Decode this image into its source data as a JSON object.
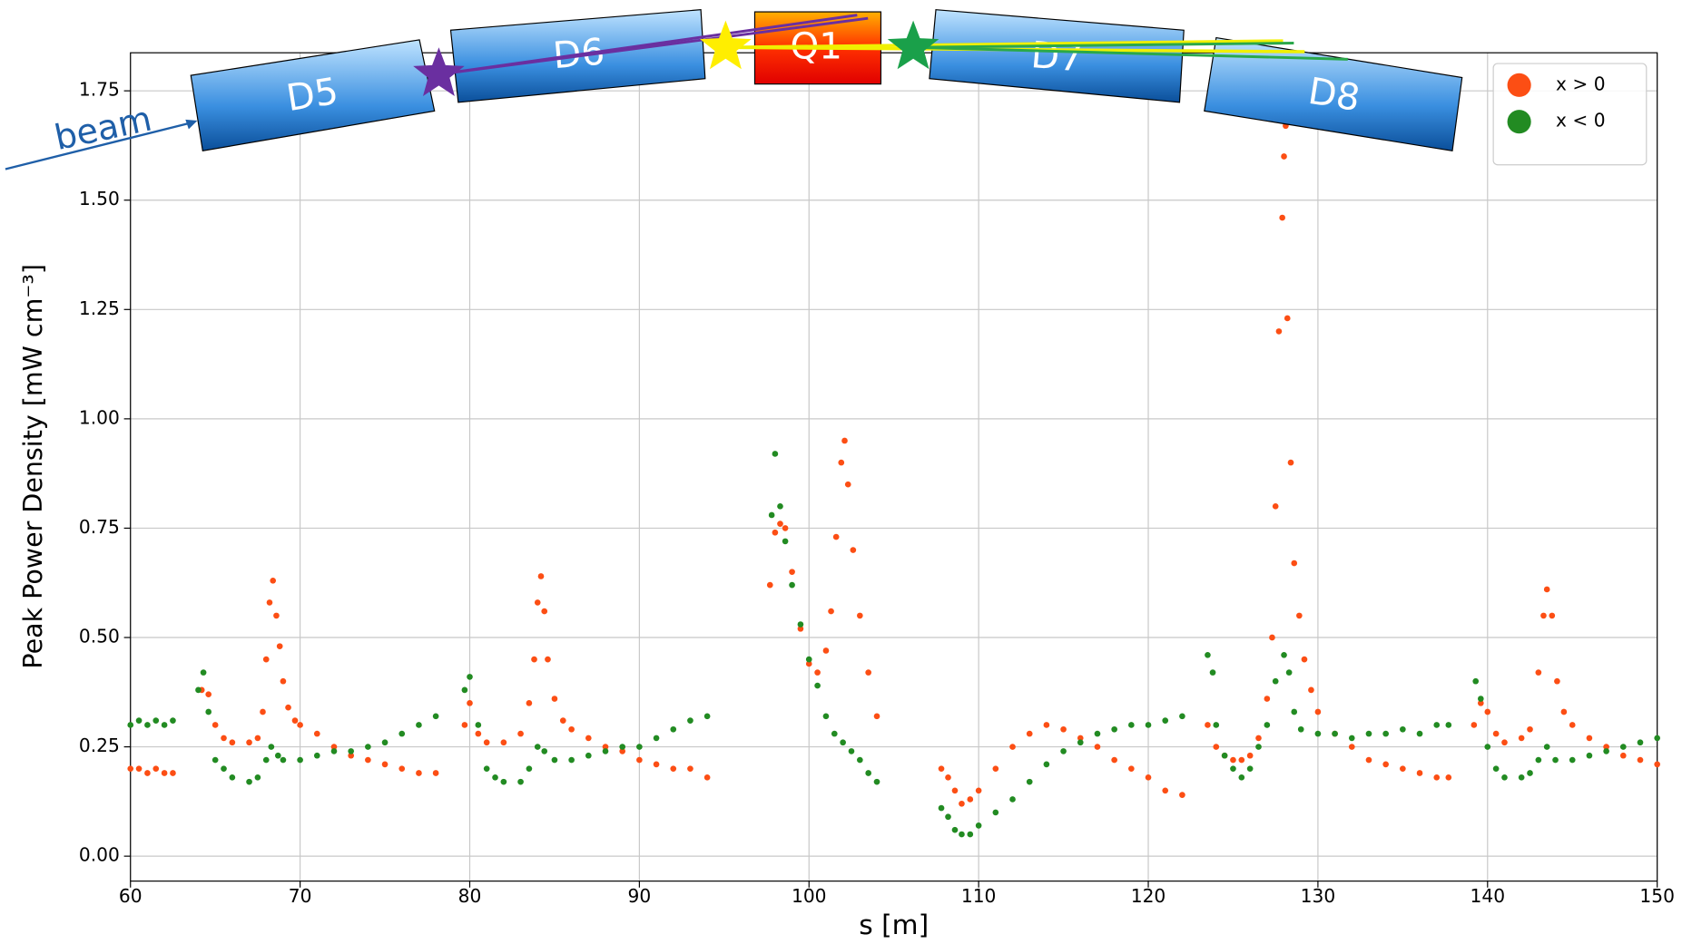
{
  "chart_data": {
    "type": "scatter",
    "xlabel": "s [m]",
    "ylabel": "Peak Power Density [mW cm⁻³]",
    "annotations": [
      "D5",
      "D6",
      "Q1",
      "D7",
      "D8",
      "beam"
    ],
    "xlim": [
      60,
      150
    ],
    "xticks": [
      60,
      70,
      80,
      90,
      100,
      110,
      120,
      130,
      140,
      150
    ],
    "ylim": [
      -0.057,
      1.837
    ],
    "yticks": [
      {
        "value": 0,
        "label": "0.00"
      },
      0.25,
      {
        "value": 0.5,
        "label": "0.50"
      },
      0.75,
      {
        "value": 1,
        "label": "1.00"
      },
      1.25,
      {
        "value": 1.5,
        "label": "1.50"
      },
      1.75
    ],
    "grid": true,
    "legend": "upper right",
    "series": [
      {
        "name": "x > 0",
        "color": "#fc4e14",
        "x": [
          60,
          60.5,
          61,
          61.5,
          62,
          62.5,
          64.2,
          64.6,
          65,
          65.5,
          66,
          67,
          67.5,
          67.8,
          68,
          68.2,
          68.4,
          68.6,
          68.8,
          69,
          69.3,
          69.7,
          70,
          71,
          72,
          73,
          74,
          75,
          76,
          77,
          78,
          79.7,
          80,
          80.5,
          81,
          82,
          83,
          83.5,
          83.8,
          84,
          84.2,
          84.4,
          84.6,
          85,
          85.5,
          86,
          87,
          88,
          89,
          90,
          91,
          92,
          93,
          94,
          97.7,
          98,
          98.3,
          98.6,
          99,
          99.5,
          100,
          100.5,
          101,
          101.3,
          101.6,
          101.9,
          102.1,
          102.3,
          102.6,
          103,
          103.5,
          104,
          107.8,
          108.2,
          108.6,
          109,
          109.5,
          110,
          111,
          112,
          113,
          114,
          115,
          116,
          117,
          118,
          119,
          120,
          121,
          122,
          123.5,
          124,
          124.5,
          125,
          125.5,
          126,
          126.5,
          127,
          127.3,
          127.5,
          127.7,
          127.9,
          128,
          128.1,
          128.2,
          128.4,
          128.6,
          128.9,
          129.2,
          129.6,
          130,
          131,
          132,
          133,
          134,
          135,
          136,
          137,
          137.7,
          139.2,
          139.6,
          140,
          140.5,
          141,
          142,
          142.5,
          143,
          143.3,
          143.5,
          143.8,
          144.1,
          144.5,
          145,
          146,
          147,
          148,
          149,
          150
        ],
        "values": [
          0.2,
          0.2,
          0.19,
          0.2,
          0.19,
          0.19,
          0.38,
          0.37,
          0.3,
          0.27,
          0.26,
          0.26,
          0.27,
          0.33,
          0.45,
          0.58,
          0.63,
          0.55,
          0.48,
          0.4,
          0.34,
          0.31,
          0.3,
          0.28,
          0.25,
          0.23,
          0.22,
          0.21,
          0.2,
          0.19,
          0.19,
          0.3,
          0.35,
          0.28,
          0.26,
          0.26,
          0.28,
          0.35,
          0.45,
          0.58,
          0.64,
          0.56,
          0.45,
          0.36,
          0.31,
          0.29,
          0.27,
          0.25,
          0.24,
          0.22,
          0.21,
          0.2,
          0.2,
          0.18,
          0.62,
          0.74,
          0.76,
          0.75,
          0.65,
          0.52,
          0.44,
          0.42,
          0.47,
          0.56,
          0.73,
          0.9,
          0.95,
          0.85,
          0.7,
          0.55,
          0.42,
          0.32,
          0.2,
          0.18,
          0.15,
          0.12,
          0.13,
          0.15,
          0.2,
          0.25,
          0.28,
          0.3,
          0.29,
          0.27,
          0.25,
          0.22,
          0.2,
          0.18,
          0.15,
          0.14,
          0.3,
          0.25,
          0.23,
          0.22,
          0.22,
          0.23,
          0.27,
          0.36,
          0.5,
          0.8,
          1.2,
          1.46,
          1.6,
          1.67,
          1.23,
          0.9,
          0.67,
          0.55,
          0.45,
          0.38,
          0.33,
          0.28,
          0.25,
          0.22,
          0.21,
          0.2,
          0.19,
          0.18,
          0.18,
          0.3,
          0.35,
          0.33,
          0.28,
          0.26,
          0.27,
          0.29,
          0.42,
          0.55,
          0.61,
          0.55,
          0.4,
          0.33,
          0.3,
          0.27,
          0.25,
          0.23,
          0.22,
          0.21
        ]
      },
      {
        "name": "x < 0",
        "color": "#228b22",
        "x": [
          60,
          60.5,
          61,
          61.5,
          62,
          62.5,
          64,
          64.3,
          64.6,
          65,
          65.5,
          66,
          67,
          67.5,
          68,
          68.3,
          68.7,
          69,
          70,
          71,
          72,
          73,
          74,
          75,
          76,
          77,
          78,
          79.7,
          80,
          80.5,
          81,
          81.5,
          82,
          83,
          83.5,
          84,
          84.4,
          85,
          86,
          87,
          88,
          89,
          90,
          91,
          92,
          93,
          94,
          97.8,
          98,
          98.3,
          98.6,
          99,
          99.5,
          100,
          100.5,
          101,
          101.5,
          102,
          102.5,
          103,
          103.5,
          104,
          107.8,
          108.2,
          108.6,
          109,
          109.5,
          110,
          111,
          112,
          113,
          114,
          115,
          116,
          117,
          118,
          119,
          120,
          121,
          122,
          123.5,
          123.8,
          124,
          124.5,
          125,
          125.5,
          126,
          126.5,
          127,
          127.5,
          128,
          128.3,
          128.6,
          129,
          130,
          131,
          132,
          133,
          134,
          135,
          136,
          137,
          137.7,
          139.3,
          139.6,
          140,
          140.5,
          141,
          142,
          142.5,
          143,
          143.5,
          144,
          145,
          146,
          147,
          148,
          149,
          150
        ],
        "values": [
          0.3,
          0.31,
          0.3,
          0.31,
          0.3,
          0.31,
          0.38,
          0.42,
          0.33,
          0.22,
          0.2,
          0.18,
          0.17,
          0.18,
          0.22,
          0.25,
          0.23,
          0.22,
          0.22,
          0.23,
          0.24,
          0.24,
          0.25,
          0.26,
          0.28,
          0.3,
          0.32,
          0.38,
          0.41,
          0.3,
          0.2,
          0.18,
          0.17,
          0.17,
          0.2,
          0.25,
          0.24,
          0.22,
          0.22,
          0.23,
          0.24,
          0.25,
          0.25,
          0.27,
          0.29,
          0.31,
          0.32,
          0.78,
          0.92,
          0.8,
          0.72,
          0.62,
          0.53,
          0.45,
          0.39,
          0.32,
          0.28,
          0.26,
          0.24,
          0.22,
          0.19,
          0.17,
          0.11,
          0.09,
          0.06,
          0.05,
          0.05,
          0.07,
          0.1,
          0.13,
          0.17,
          0.21,
          0.24,
          0.26,
          0.28,
          0.29,
          0.3,
          0.3,
          0.31,
          0.32,
          0.46,
          0.42,
          0.3,
          0.23,
          0.2,
          0.18,
          0.2,
          0.25,
          0.3,
          0.4,
          0.46,
          0.42,
          0.33,
          0.29,
          0.28,
          0.28,
          0.27,
          0.28,
          0.28,
          0.29,
          0.28,
          0.3,
          0.3,
          0.4,
          0.36,
          0.25,
          0.2,
          0.18,
          0.18,
          0.19,
          0.22,
          0.25,
          0.22,
          0.22,
          0.23,
          0.24,
          0.25,
          0.26,
          0.27
        ]
      }
    ]
  }
}
